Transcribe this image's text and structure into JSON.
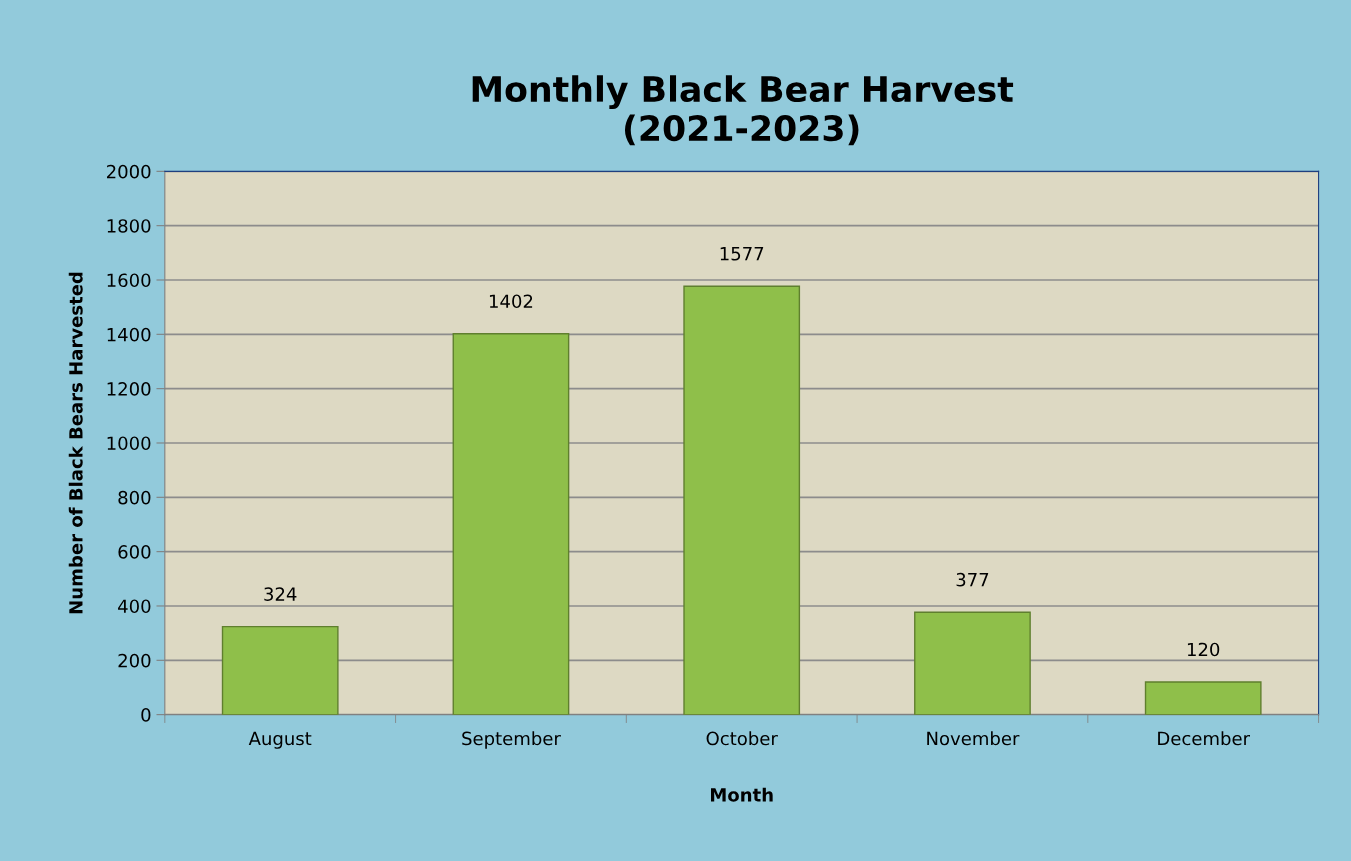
{
  "chart_data": {
    "type": "bar",
    "title": "Monthly Black Bear Harvest\n(2021-2023)",
    "xlabel": "Month",
    "ylabel": "Number of Black Bears Harvested",
    "categories": [
      "August",
      "September",
      "October",
      "November",
      "December"
    ],
    "values": [
      324,
      1402,
      1577,
      377,
      120
    ],
    "color": "#8fbf4a",
    "ylim": [
      0,
      2000
    ],
    "yticks": [
      0,
      200,
      400,
      600,
      800,
      1000,
      1200,
      1400,
      1600,
      1800,
      2000
    ],
    "grid": "y",
    "data_labels": true
  }
}
